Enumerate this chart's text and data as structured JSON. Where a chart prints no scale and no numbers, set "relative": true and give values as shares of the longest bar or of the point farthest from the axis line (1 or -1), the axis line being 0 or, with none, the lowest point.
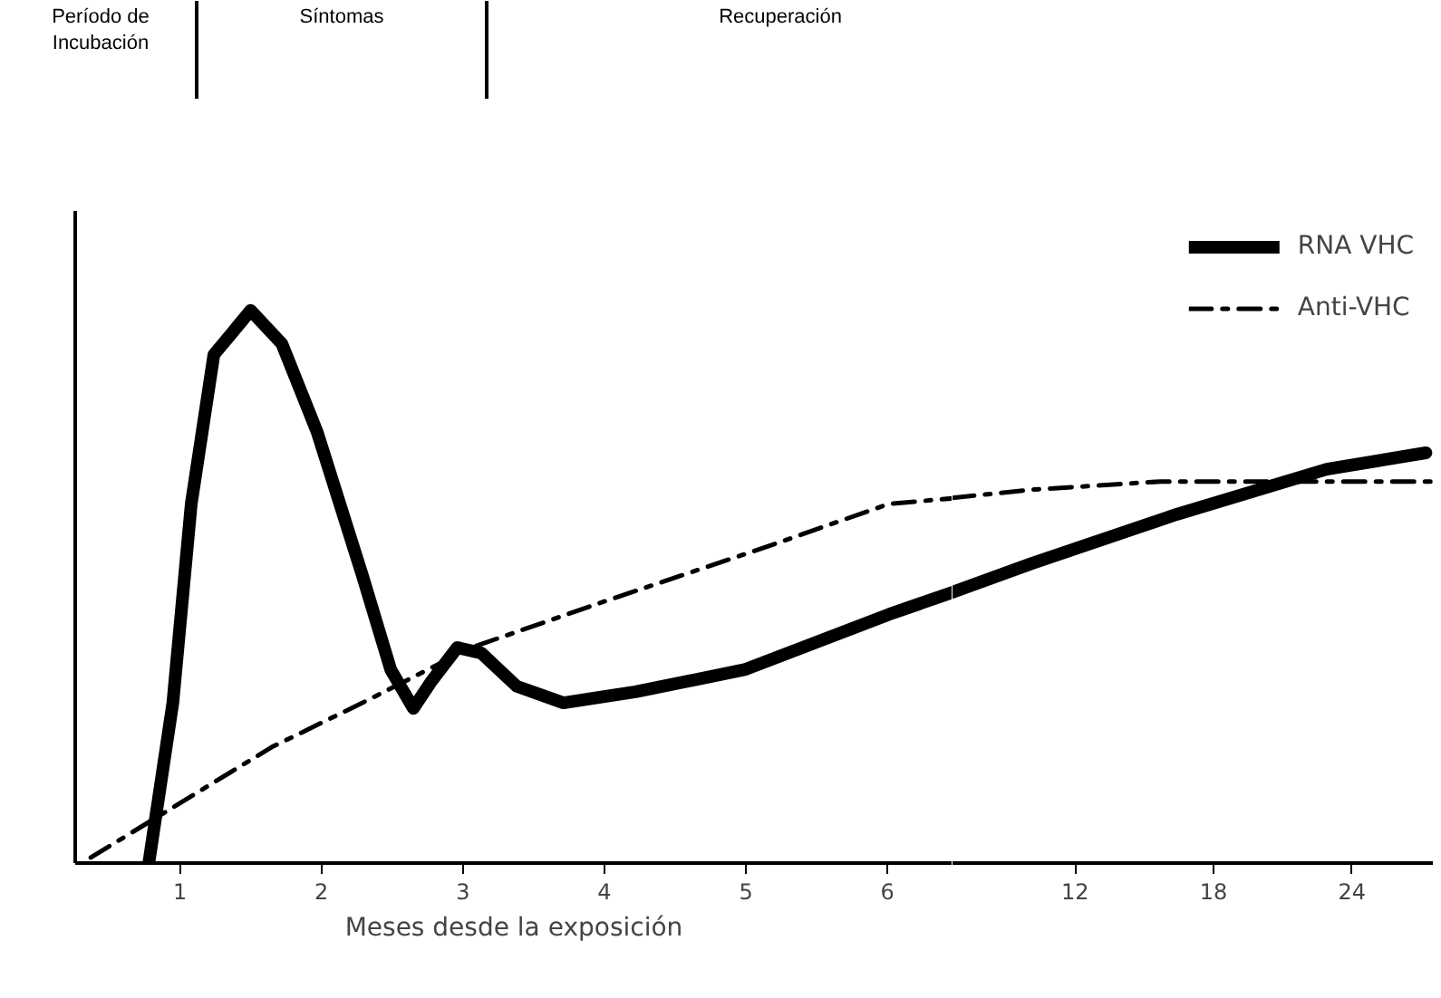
{
  "chart_data": [
    {
      "type": "line",
      "relative": true,
      "xlabel": "Meses desde la exposición",
      "xlim": [
        0.26,
        6.46
      ],
      "xticks": [
        1,
        2,
        3,
        4,
        5,
        6
      ],
      "grid": false,
      "annotations": [
        "Período de\nIncubación",
        "Síntomas",
        "Recuperación"
      ],
      "series": [
        {
          "color": "#000000",
          "line_style": "solid",
          "x": [
            0.78,
            0.95,
            1.08,
            1.24,
            1.5,
            1.72,
            1.97,
            2.29,
            2.49,
            2.65,
            2.78,
            2.96,
            3.13,
            3.38,
            3.71,
            4.22,
            4.99,
            6.01,
            6.46
          ],
          "values": [
            0,
            0.29,
            0.65,
            0.92,
            1.0,
            0.94,
            0.78,
            0.52,
            0.35,
            0.28,
            0.33,
            0.39,
            0.38,
            0.32,
            0.29,
            0.31,
            0.35,
            0.45,
            0.49
          ]
        },
        {
          "color": "#000000",
          "line_style": "dashdot",
          "x": [
            0.37,
            1.01,
            1.65,
            2.29,
            3.06,
            3.96,
            5.12,
            6.01,
            6.46
          ],
          "values": [
            0.01,
            0.11,
            0.21,
            0.29,
            0.39,
            0.47,
            0.57,
            0.65,
            0.66
          ]
        }
      ]
    },
    {
      "type": "line",
      "relative": true,
      "xlim": [
        6.69,
        27.5
      ],
      "xticks": [
        12,
        18,
        24
      ],
      "grid": false,
      "tick_labels": "x",
      "legend": "top right",
      "series": [
        {
          "name": "RNA VHC",
          "color": "#000000",
          "line_style": "solid",
          "x": [
            6.69,
            10.1,
            16.4,
            22.9,
            27.2
          ],
          "values": [
            0.66,
            0.73,
            0.85,
            0.96,
            1.0
          ]
        },
        {
          "name": "Anti-VHC",
          "color": "#000000",
          "line_style": "dashdot",
          "x": [
            6.69,
            10.1,
            15.7,
            22.9,
            27.5
          ],
          "values": [
            0.89,
            0.91,
            0.93,
            0.93,
            0.93
          ]
        }
      ]
    }
  ]
}
